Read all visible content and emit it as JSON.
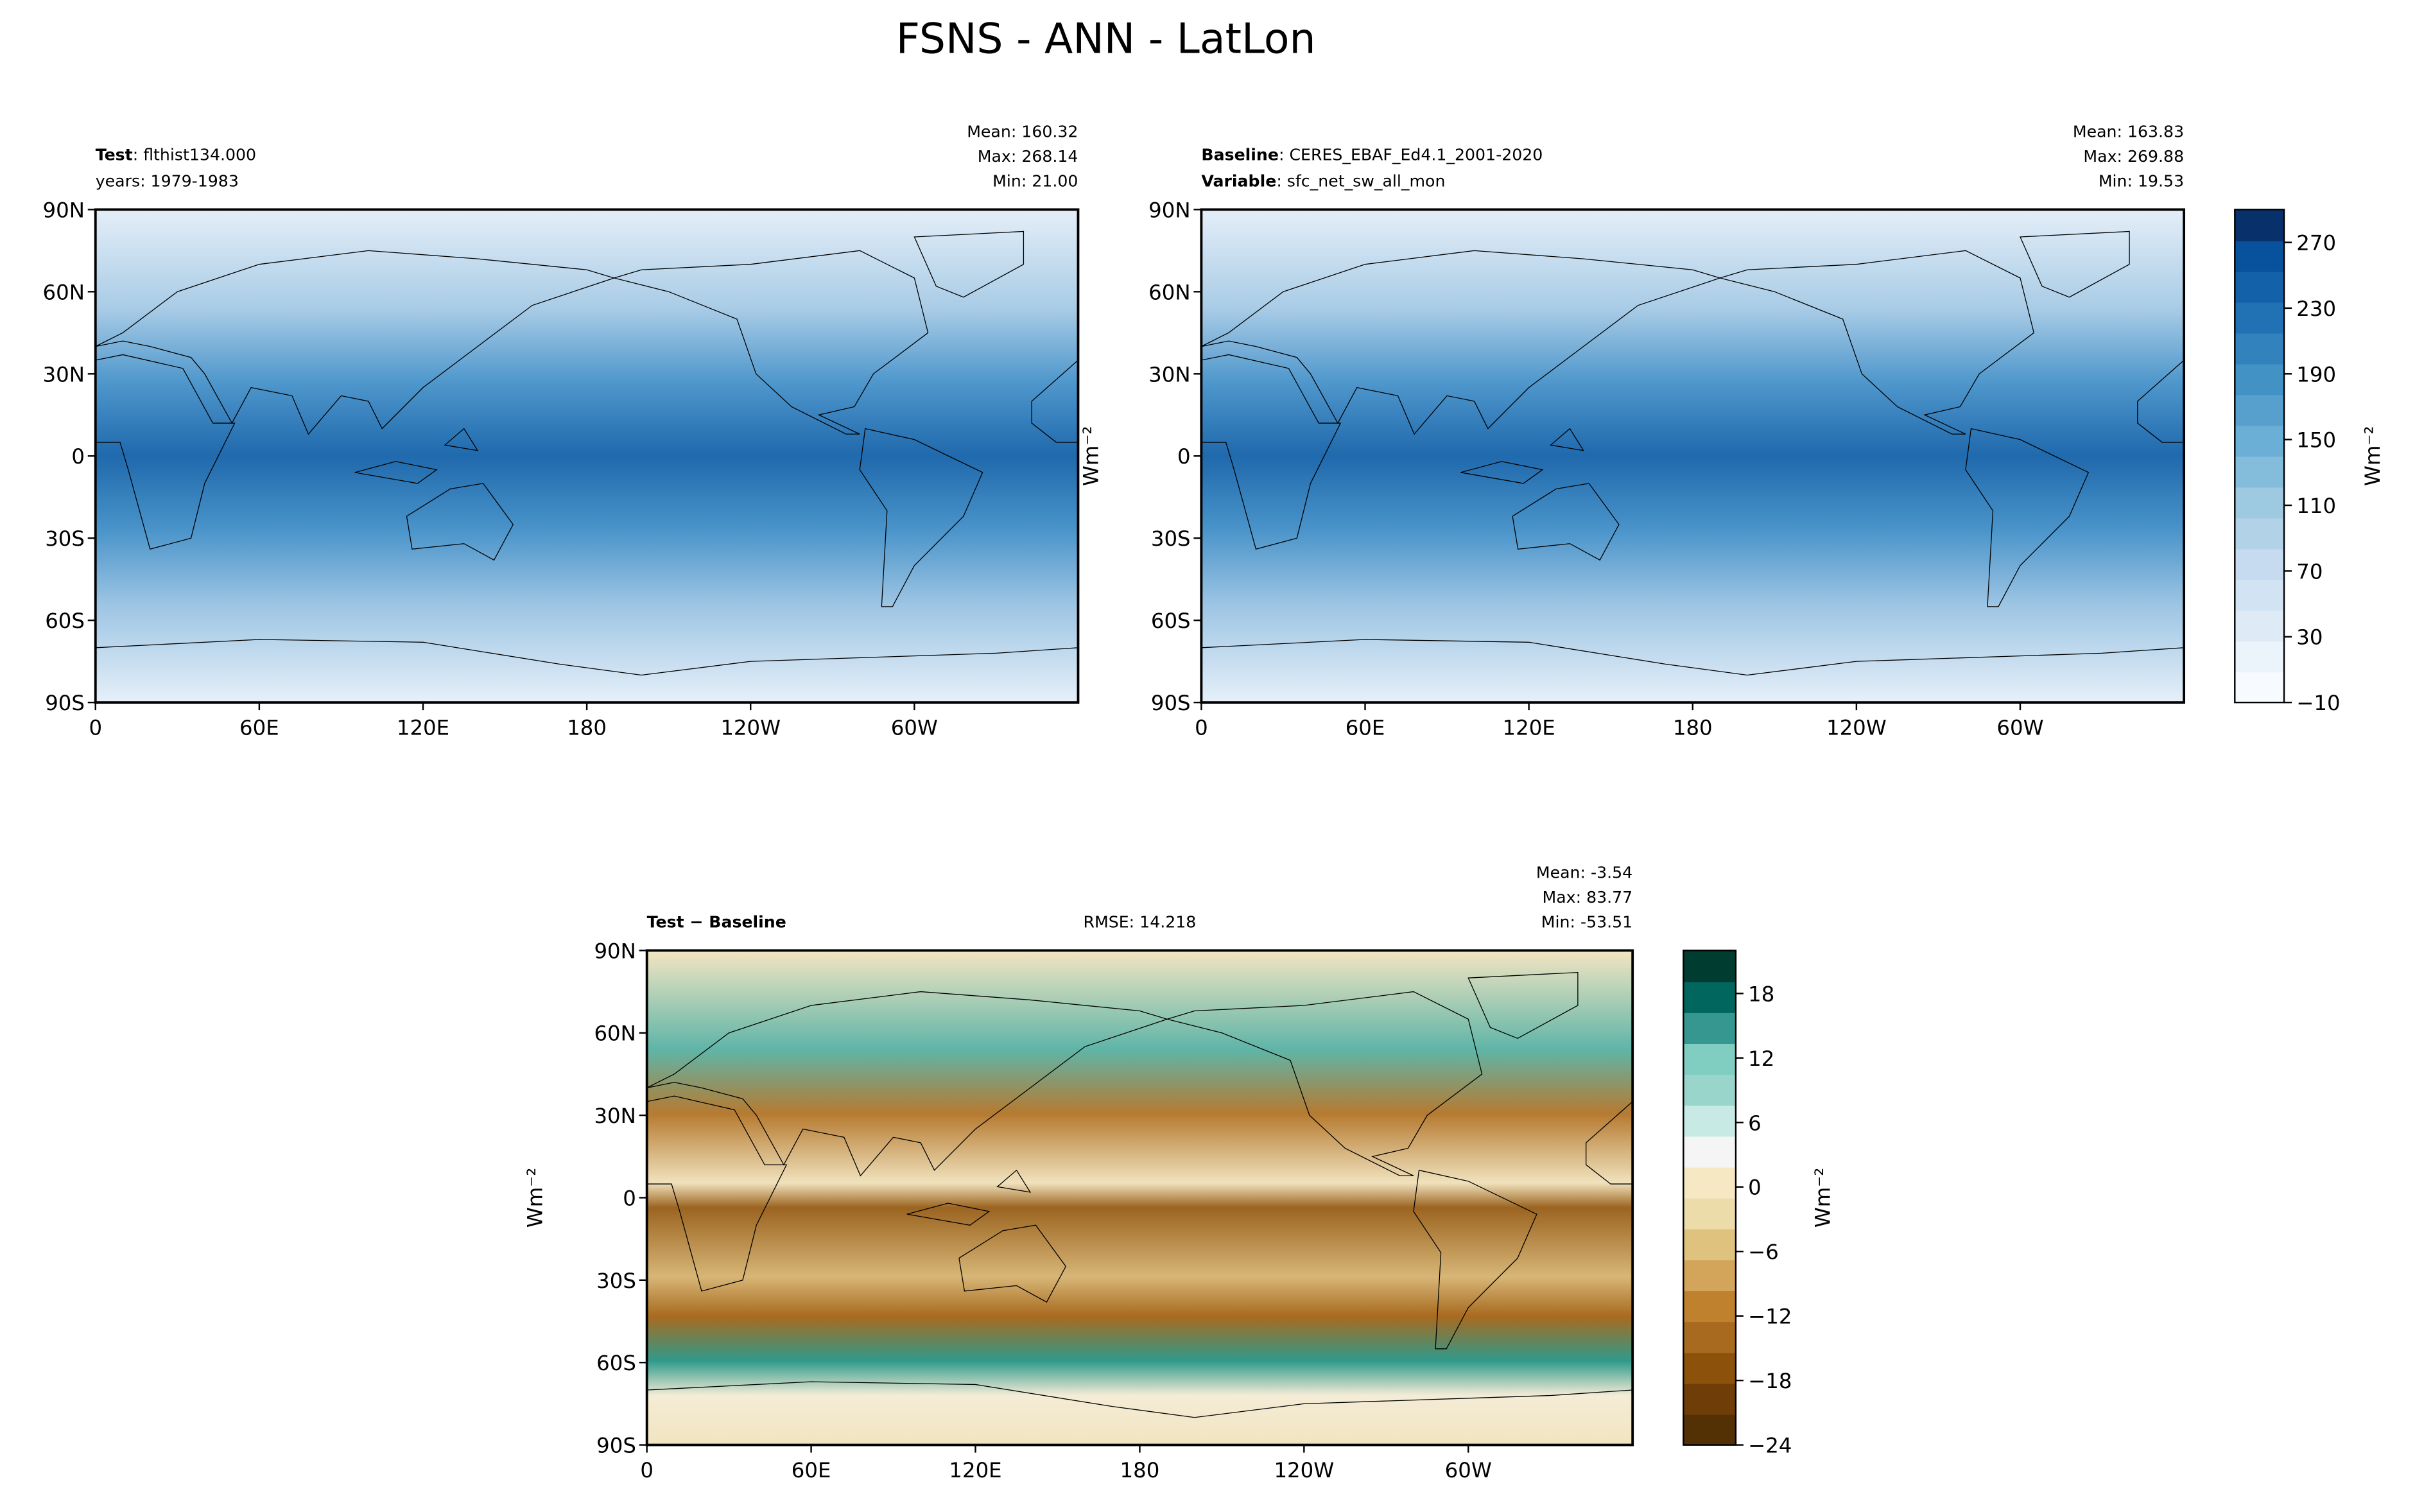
{
  "chart_data": [
    {
      "type": "map",
      "title": "FSNS - ANN - LatLon",
      "left_text": [
        {
          "bold": "Test",
          "text": ": flthist134.000"
        },
        {
          "text": "years: 1979-1983"
        }
      ],
      "stats": [
        "Mean: 160.32",
        "Max: 268.14",
        "Min: 21.00"
      ],
      "field": "abs",
      "xlim": [
        0,
        360
      ],
      "xticks": [
        0,
        {
          "value": 60,
          "label": "60E"
        },
        {
          "value": 120,
          "label": "120E"
        },
        180,
        {
          "value": 240,
          "label": "120W"
        },
        {
          "value": 300,
          "label": "60W"
        }
      ],
      "ylim": [
        -90,
        90
      ],
      "yticks": [
        {
          "value": -90,
          "label": "90S"
        },
        {
          "value": -60,
          "label": "60S"
        },
        {
          "value": -30,
          "label": "30S"
        },
        0,
        {
          "value": 30,
          "label": "30N"
        },
        {
          "value": 60,
          "label": "60N"
        },
        {
          "value": 90,
          "label": "90N"
        }
      ]
    },
    {
      "type": "map",
      "left_text": [
        {
          "bold": "Baseline",
          "text": ": CERES_EBAF_Ed4.1_2001-2020"
        },
        {
          "bold": "Variable",
          "text": ": sfc_net_sw_all_mon"
        }
      ],
      "stats": [
        "Mean: 163.83",
        "Max: 269.88",
        "Min: 19.53"
      ],
      "ylabel": "Wm⁻²",
      "field": "abs",
      "xlim": [
        0,
        360
      ],
      "xticks": [
        0,
        {
          "value": 60,
          "label": "60E"
        },
        {
          "value": 120,
          "label": "120E"
        },
        180,
        {
          "value": 240,
          "label": "120W"
        },
        {
          "value": 300,
          "label": "60W"
        }
      ],
      "ylim": [
        -90,
        90
      ],
      "yticks": [
        {
          "value": -90,
          "label": "90S"
        },
        {
          "value": -60,
          "label": "60S"
        },
        {
          "value": -30,
          "label": "30S"
        },
        0,
        {
          "value": 30,
          "label": "30N"
        },
        {
          "value": 60,
          "label": "60N"
        },
        {
          "value": 90,
          "label": "90N"
        }
      ],
      "colorbar": {
        "label": "Wm⁻²",
        "ylim": [
          -10,
          290
        ],
        "yticks": [
          {
            "value": -10,
            "label": "−10"
          },
          30,
          70,
          110,
          150,
          190,
          230,
          270
        ],
        "colors": [
          "#f7fbff",
          "#ebf3fb",
          "#deebf7",
          "#d2e3f3",
          "#c6dbef",
          "#b2d2e8",
          "#9ecae1",
          "#84bcdb",
          "#6baed6",
          "#57a0ce",
          "#4292c6",
          "#3282be",
          "#2171b5",
          "#1361a9",
          "#08519c",
          "#08306b"
        ]
      }
    },
    {
      "type": "map",
      "left_text": [
        {
          "bold": "Test − Baseline"
        }
      ],
      "center_text": "RMSE: 14.218",
      "stats": [
        "Mean: -3.54",
        "Max: 83.77",
        "Min: -53.51"
      ],
      "ylabel": "Wm⁻²",
      "field": "diff",
      "xlim": [
        0,
        360
      ],
      "xticks": [
        0,
        {
          "value": 60,
          "label": "60E"
        },
        {
          "value": 120,
          "label": "120E"
        },
        180,
        {
          "value": 240,
          "label": "120W"
        },
        {
          "value": 300,
          "label": "60W"
        }
      ],
      "ylim": [
        -90,
        90
      ],
      "yticks": [
        {
          "value": -90,
          "label": "90S"
        },
        {
          "value": -60,
          "label": "60S"
        },
        {
          "value": -30,
          "label": "30S"
        },
        0,
        {
          "value": 30,
          "label": "30N"
        },
        {
          "value": 60,
          "label": "60N"
        },
        {
          "value": 90,
          "label": "90N"
        }
      ],
      "colorbar": {
        "label": "Wm⁻²",
        "ylim": [
          -24,
          22
        ],
        "yticks": [
          {
            "value": -24,
            "label": "−24"
          },
          {
            "value": -18,
            "label": "−18"
          },
          {
            "value": -12,
            "label": "−12"
          },
          {
            "value": -6,
            "label": "−6"
          },
          0,
          6,
          12,
          18
        ],
        "colors": [
          "#543005",
          "#6f3e08",
          "#8c510a",
          "#a86a1f",
          "#bf812d",
          "#d3a55a",
          "#dfc27d",
          "#ecdcaa",
          "#f6e8c3",
          "#f5f5f5",
          "#c7eae5",
          "#9ad5cb",
          "#80cdc1",
          "#35978f",
          "#01665e",
          "#003c30"
        ]
      }
    }
  ]
}
